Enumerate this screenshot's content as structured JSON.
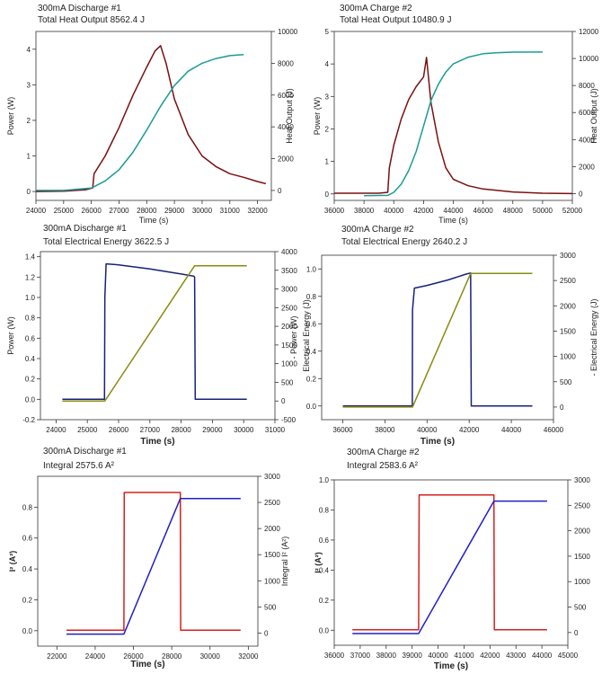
{
  "colors": {
    "brown": "#7a1010",
    "teal": "#1a9c94",
    "navy": "#18207a",
    "olive": "#8a8a10",
    "red": "#d42020",
    "blue": "#2020c8",
    "axis": "#333333"
  },
  "chart_data": [
    {
      "type": "line",
      "title": "300mA Discharge #1",
      "subtitle": "Total Heat Output 8562.4 J",
      "xlabel": "Time (s)",
      "ylabel": "Power (W)",
      "y2label": "Heat Output (J)",
      "xlim": [
        24000,
        32500
      ],
      "ylim": [
        -0.25,
        4.5
      ],
      "y2lim": [
        -625,
        10000
      ],
      "xticks": [
        24000,
        25000,
        26000,
        27000,
        28000,
        29000,
        30000,
        31000,
        32000
      ],
      "yticks": [
        0,
        1,
        2,
        3,
        4
      ],
      "y2ticks": [
        0,
        2000,
        4000,
        6000,
        8000,
        10000
      ],
      "series": [
        {
          "axis": "left",
          "color": "brown",
          "x": [
            24000,
            25000,
            25800,
            26050,
            26100,
            26500,
            27000,
            27500,
            28000,
            28300,
            28500,
            28700,
            29000,
            29500,
            30000,
            30500,
            31000,
            31500,
            32000,
            32300
          ],
          "y": [
            0,
            0.01,
            0.05,
            0.1,
            0.5,
            1.0,
            1.8,
            2.7,
            3.5,
            3.95,
            4.1,
            3.6,
            2.6,
            1.6,
            1.0,
            0.7,
            0.5,
            0.4,
            0.28,
            0.22
          ]
        },
        {
          "axis": "right",
          "color": "teal",
          "x": [
            24000,
            25000,
            26000,
            26500,
            27000,
            27500,
            28000,
            28500,
            29000,
            29500,
            30000,
            30500,
            31000,
            31500
          ],
          "y": [
            0,
            5,
            150,
            600,
            1300,
            2400,
            3800,
            5300,
            6600,
            7500,
            8000,
            8300,
            8480,
            8540
          ]
        }
      ]
    },
    {
      "type": "line",
      "title": "300mA Charge #2",
      "subtitle": "Total Heat Output 10480.9 J",
      "xlabel": "Time (s)",
      "ylabel": "Power (W)",
      "y2label": "Heat Output (J)",
      "xlim": [
        36000,
        52000
      ],
      "ylim": [
        -0.2,
        5
      ],
      "y2lim": [
        -500,
        12000
      ],
      "xticks": [
        36000,
        38000,
        40000,
        42000,
        44000,
        46000,
        48000,
        50000,
        52000
      ],
      "yticks": [
        0,
        1,
        2,
        3,
        4,
        5
      ],
      "y2ticks": [
        0,
        2000,
        4000,
        6000,
        8000,
        10000,
        12000
      ],
      "series": [
        {
          "axis": "left",
          "color": "brown",
          "x": [
            36000,
            39000,
            39600,
            39700,
            40000,
            40500,
            41000,
            41500,
            42000,
            42200,
            42500,
            43000,
            43500,
            44000,
            45000,
            46000,
            48000,
            50000,
            52000
          ],
          "y": [
            0.02,
            0.02,
            0.05,
            0.8,
            1.5,
            2.3,
            2.9,
            3.3,
            3.6,
            4.2,
            2.8,
            1.6,
            0.8,
            0.45,
            0.25,
            0.15,
            0.06,
            0.02,
            0.01
          ]
        },
        {
          "axis": "right",
          "color": "teal",
          "x": [
            38000,
            39600,
            40000,
            40500,
            41000,
            41500,
            42000,
            42500,
            43000,
            43500,
            44000,
            45000,
            46000,
            47000,
            48000,
            50000
          ],
          "y": [
            -150,
            -130,
            100,
            700,
            1700,
            3100,
            5000,
            6900,
            8100,
            9000,
            9600,
            10100,
            10350,
            10430,
            10470,
            10480
          ]
        }
      ]
    },
    {
      "type": "line",
      "title": "300mA Discharge #1",
      "subtitle": "Total Electrical Energy 3622.5 J",
      "xlabel": "Time (s)",
      "ylabel": "Power (W)",
      "y2label": "Electrical Energy (J)",
      "xlim": [
        23500,
        31000
      ],
      "ylim": [
        -0.2,
        1.45
      ],
      "y2lim": [
        -500,
        4000
      ],
      "xticks": [
        24000,
        25000,
        26000,
        27000,
        28000,
        29000,
        30000,
        31000
      ],
      "yticks": [
        -0.2,
        0.0,
        0.2,
        0.4,
        0.6,
        0.8,
        1.0,
        1.2,
        1.4
      ],
      "y2ticks": [
        -500,
        0,
        500,
        1000,
        1500,
        2000,
        2500,
        3000,
        3500,
        4000
      ],
      "series": [
        {
          "axis": "left",
          "color": "navy",
          "x": [
            24200,
            25550,
            25560,
            25600,
            26000,
            27000,
            28000,
            28400,
            28430,
            28450,
            30100
          ],
          "y": [
            0,
            0,
            1.0,
            1.33,
            1.32,
            1.28,
            1.23,
            1.21,
            1.2,
            0,
            0
          ]
        },
        {
          "axis": "right",
          "color": "olive",
          "x": [
            24200,
            25560,
            28430,
            30100
          ],
          "y": [
            0,
            0,
            3622,
            3622
          ]
        }
      ]
    },
    {
      "type": "line",
      "title": "300mA Charge #2",
      "subtitle": "Total Electrical Energy 2640.2 J",
      "xlabel": "Time (s)",
      "ylabel": "- Power (W)",
      "y2label": "- Electrical Energy (J)",
      "xlim": [
        35000,
        46000
      ],
      "ylim": [
        -0.1,
        1.1
      ],
      "y2lim": [
        -250,
        3000
      ],
      "xticks": [
        36000,
        38000,
        40000,
        42000,
        44000,
        46000
      ],
      "yticks": [
        0.0,
        0.2,
        0.4,
        0.6,
        0.8,
        1.0
      ],
      "y2ticks": [
        0,
        500,
        1000,
        1500,
        2000,
        2500,
        3000
      ],
      "series": [
        {
          "axis": "left",
          "color": "navy",
          "x": [
            36000,
            39300,
            39310,
            39400,
            40000,
            41000,
            41800,
            42050,
            42070,
            42100,
            45000
          ],
          "y": [
            0,
            0,
            0.7,
            0.86,
            0.88,
            0.92,
            0.96,
            0.97,
            0.97,
            0,
            0
          ]
        },
        {
          "axis": "right",
          "color": "olive",
          "x": [
            36000,
            39310,
            42070,
            45000
          ],
          "y": [
            0,
            0,
            2640,
            2640
          ]
        }
      ]
    },
    {
      "type": "line",
      "title": "300mA Discharge #1",
      "subtitle": "Integral 2575.6 A²",
      "xlabel": "Time (s)",
      "ylabel": "I² (A²)",
      "y2label": "Integral I² (A²)",
      "xlim": [
        21000,
        32500
      ],
      "ylim": [
        -0.1,
        1.0
      ],
      "y2lim": [
        -250,
        3000
      ],
      "xticks": [
        22000,
        24000,
        26000,
        28000,
        30000,
        32000
      ],
      "yticks": [
        0.0,
        0.2,
        0.4,
        0.6,
        0.8
      ],
      "y2ticks": [
        0,
        500,
        1000,
        1500,
        2000,
        2500,
        3000
      ],
      "series": [
        {
          "axis": "left",
          "color": "red",
          "x": [
            22500,
            25500,
            25520,
            28450,
            28470,
            31600
          ],
          "y": [
            0.003,
            0.003,
            0.895,
            0.895,
            0.003,
            0.003
          ]
        },
        {
          "axis": "right",
          "color": "blue",
          "x": [
            22500,
            25500,
            28450,
            31600
          ],
          "y": [
            -20,
            -20,
            2576,
            2576
          ]
        }
      ]
    },
    {
      "type": "line",
      "title": "300mA Charge #2",
      "subtitle": "Integral 2583.6 A²",
      "xlabel": "Time (s)",
      "ylabel": "I² (A²)",
      "y2label": "",
      "xlim": [
        36000,
        45000
      ],
      "ylim": [
        -0.1,
        1.0
      ],
      "y2lim": [
        -250,
        3000
      ],
      "xticks": [
        36000,
        37000,
        38000,
        39000,
        40000,
        41000,
        42000,
        43000,
        44000,
        45000
      ],
      "yticks": [
        0.0,
        0.2,
        0.4,
        0.6,
        0.8,
        1.0
      ],
      "y2ticks": [
        0,
        500,
        1000,
        1500,
        2000,
        2500,
        3000
      ],
      "series": [
        {
          "axis": "left",
          "color": "red",
          "x": [
            36700,
            39250,
            39270,
            42150,
            42170,
            44200
          ],
          "y": [
            0.003,
            0.003,
            0.9,
            0.9,
            0.003,
            0.003
          ]
        },
        {
          "axis": "right",
          "color": "blue",
          "x": [
            36700,
            39250,
            42150,
            44200
          ],
          "y": [
            -20,
            -20,
            2584,
            2584
          ]
        }
      ]
    }
  ]
}
